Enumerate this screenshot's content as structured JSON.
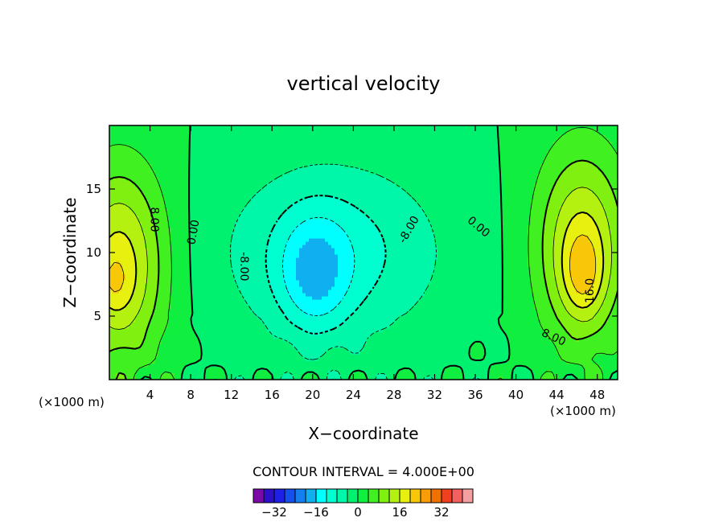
{
  "chart_data": {
    "type": "heatmap",
    "title": "vertical velocity",
    "xlabel": "X−coordinate",
    "ylabel": "Z−coordinate",
    "x_unit": "(×1000 m)",
    "y_unit": "(×1000 m)",
    "xlim": [
      0,
      50
    ],
    "ylim": [
      0,
      20
    ],
    "x_ticks": [
      4,
      8,
      12,
      16,
      20,
      24,
      28,
      32,
      36,
      40,
      44,
      48
    ],
    "y_ticks": [
      5,
      10,
      15
    ],
    "x_tick_labels": [
      "4",
      "8",
      "12",
      "16",
      "20",
      "24",
      "28",
      "32",
      "36",
      "40",
      "44",
      "48"
    ],
    "y_tick_labels": [
      "5",
      "10",
      "15"
    ],
    "contour_interval_text": "CONTOUR INTERVAL = 4.000E+00",
    "contour_interval": 4,
    "contour_labels": [
      {
        "text": "8.00",
        "x": 4.4,
        "z": 12.6,
        "rot": 90
      },
      {
        "text": "0.00",
        "x": 8.3,
        "z": 11.6,
        "rot": -80
      },
      {
        "text": "-8.00",
        "x": 13.2,
        "z": 8.9,
        "rot": 90
      },
      {
        "text": "-8.00",
        "x": 29.5,
        "z": 11.8,
        "rot": -60
      },
      {
        "text": "0.00",
        "x": 36.3,
        "z": 12.0,
        "rot": 40
      },
      {
        "text": "16.0",
        "x": 47.3,
        "z": 7.0,
        "rot": -90
      },
      {
        "text": "8.00",
        "x": 43.7,
        "z": 3.3,
        "rot": 25
      }
    ],
    "colorbar": {
      "levels": [
        -40,
        -36,
        -32,
        -28,
        -24,
        -20,
        -16,
        -12,
        -8,
        -4,
        0,
        4,
        8,
        12,
        16,
        20,
        24,
        28,
        32,
        36,
        40
      ],
      "colors": [
        "#7a0aa8",
        "#2b10c8",
        "#1f20e6",
        "#1450ee",
        "#1480f0",
        "#10b0f0",
        "#00ffff",
        "#00ffd0",
        "#00f6a8",
        "#00f070",
        "#10ee40",
        "#40f020",
        "#80f010",
        "#b4f010",
        "#e8f010",
        "#f8c808",
        "#f89c08",
        "#f07000",
        "#f04020",
        "#f46060",
        "#f4a0a0"
      ],
      "tick_labels": [
        {
          "value": -32,
          "label": "−32"
        },
        {
          "value": -16,
          "label": "−16"
        },
        {
          "value": 0,
          "label": "0"
        },
        {
          "value": 16,
          "label": "16"
        },
        {
          "value": 32,
          "label": "32"
        }
      ]
    },
    "features": [
      {
        "name": "left updraft",
        "x": 1.0,
        "z": 9.0,
        "sx": 3.2,
        "sz": 5.5,
        "amp": 18
      },
      {
        "name": "left updraft core",
        "x": 0.4,
        "z": 7.6,
        "sx": 1.2,
        "sz": 1.6,
        "amp": 4
      },
      {
        "name": "central downdraft",
        "x": 22.0,
        "z": 10.0,
        "sx": 7.5,
        "sz": 5.0,
        "amp": -10
      },
      {
        "name": "central downdraft core",
        "x": 20.2,
        "z": 8.2,
        "sx": 2.4,
        "sz": 3.2,
        "amp": -10
      },
      {
        "name": "right updraft",
        "x": 46.5,
        "z": 10.5,
        "sx": 3.2,
        "sz": 5.5,
        "amp": 17
      },
      {
        "name": "right updraft core",
        "x": 46.6,
        "z": 8.2,
        "sx": 1.4,
        "sz": 2.4,
        "amp": 8
      }
    ],
    "grid": false,
    "legend": "bottom"
  }
}
